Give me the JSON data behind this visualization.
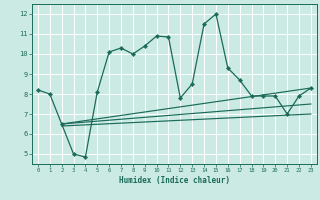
{
  "xlabel": "Humidex (Indice chaleur)",
  "ylabel": "",
  "bg_color": "#cceae4",
  "grid_color": "#b8ddd6",
  "line_color": "#1a6b5a",
  "xlim": [
    -0.5,
    23.5
  ],
  "ylim": [
    4.5,
    12.5
  ],
  "xticks": [
    0,
    1,
    2,
    3,
    4,
    5,
    6,
    7,
    8,
    9,
    10,
    11,
    12,
    13,
    14,
    15,
    16,
    17,
    18,
    19,
    20,
    21,
    22,
    23
  ],
  "yticks": [
    5,
    6,
    7,
    8,
    9,
    10,
    11,
    12
  ],
  "main_series": {
    "x": [
      0,
      1,
      2,
      3,
      4,
      5,
      6,
      7,
      8,
      9,
      10,
      11,
      12,
      13,
      14,
      15,
      16,
      17,
      18,
      19,
      20,
      21,
      22,
      23
    ],
    "y": [
      8.2,
      8.0,
      6.5,
      5.0,
      4.85,
      8.1,
      10.1,
      10.3,
      10.0,
      10.4,
      10.9,
      10.85,
      7.8,
      8.5,
      11.5,
      12.0,
      9.3,
      8.7,
      7.9,
      7.9,
      7.9,
      7.0,
      7.9,
      8.3
    ]
  },
  "linear_series": [
    {
      "x0": 2,
      "y0": 6.5,
      "x1": 23,
      "y1": 8.3
    },
    {
      "x0": 2,
      "y0": 6.5,
      "x1": 23,
      "y1": 7.5
    },
    {
      "x0": 2,
      "y0": 6.4,
      "x1": 23,
      "y1": 7.0
    }
  ]
}
